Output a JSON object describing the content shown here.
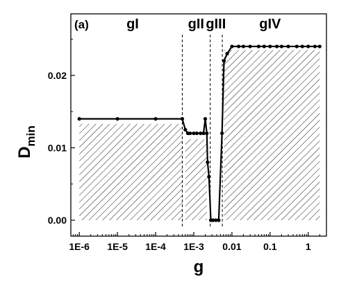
{
  "chart_data": {
    "type": "line",
    "panel_label": "(a)",
    "xlabel": "g",
    "ylabel_main": "D",
    "ylabel_sub": "min",
    "x_scale": "log",
    "xlim": [
      6e-07,
      3
    ],
    "ylim": [
      -0.0022,
      0.0285
    ],
    "x_ticks": [
      {
        "value": 1e-06,
        "label": "1E-6"
      },
      {
        "value": 1e-05,
        "label": "1E-5"
      },
      {
        "value": 0.0001,
        "label": "1E-4"
      },
      {
        "value": 0.001,
        "label": "1E-3"
      },
      {
        "value": 0.01,
        "label": "0.01"
      },
      {
        "value": 0.1,
        "label": "0.1"
      },
      {
        "value": 1,
        "label": "1"
      }
    ],
    "y_ticks": [
      {
        "value": 0.0,
        "label": "0.00"
      },
      {
        "value": 0.01,
        "label": "0.01"
      },
      {
        "value": 0.02,
        "label": "0.02"
      }
    ],
    "region_boundaries": [
      0.0005,
      0.0027,
      0.0056
    ],
    "regions": [
      {
        "label": "gI",
        "x": 2.5e-05
      },
      {
        "label": "gII",
        "x": 0.00115
      },
      {
        "label": "gIII",
        "x": 0.0038
      },
      {
        "label": "gIV",
        "x": 0.1
      }
    ],
    "series": [
      {
        "x": [
          1e-06,
          1e-05,
          0.0001,
          0.0005,
          0.0006,
          0.0007,
          0.0008,
          0.001,
          0.0012,
          0.0015,
          0.0018,
          0.002,
          0.0022,
          0.0023,
          0.0025,
          0.0028,
          0.0032,
          0.0038,
          0.0045,
          0.0055,
          0.0062,
          0.0075,
          0.01,
          0.015,
          0.02,
          0.03,
          0.05,
          0.07,
          0.1,
          0.15,
          0.2,
          0.3,
          0.5,
          0.7,
          1.0,
          1.5,
          2.0
        ],
        "y": [
          0.014,
          0.014,
          0.014,
          0.014,
          0.0125,
          0.012,
          0.012,
          0.012,
          0.012,
          0.012,
          0.012,
          0.014,
          0.012,
          0.008,
          0.006,
          0.0,
          0.0,
          0.0,
          0.0,
          0.012,
          0.022,
          0.023,
          0.024,
          0.024,
          0.024,
          0.024,
          0.024,
          0.024,
          0.024,
          0.024,
          0.024,
          0.024,
          0.024,
          0.024,
          0.024,
          0.024,
          0.024
        ]
      }
    ],
    "hatched_regions": [
      {
        "x": [
          1e-06,
          0.0005
        ],
        "y": [
          0,
          0.0133
        ]
      },
      {
        "x": [
          0.0006,
          0.0022
        ],
        "y": [
          0,
          0.0112
        ]
      },
      {
        "x": [
          0.0062,
          2.0
        ],
        "y": [
          0,
          0.0235
        ]
      }
    ]
  }
}
